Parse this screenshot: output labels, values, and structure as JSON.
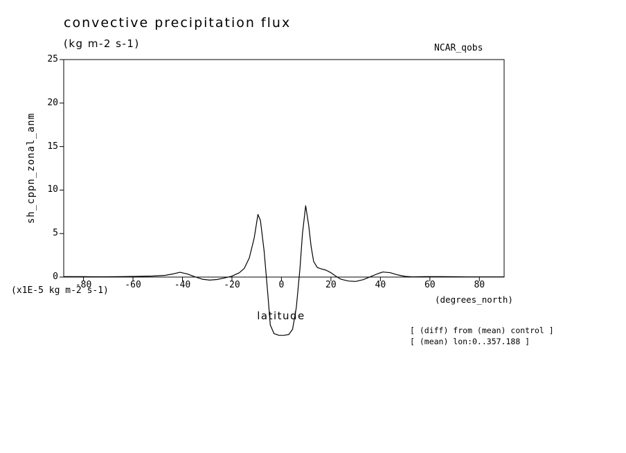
{
  "header": {
    "title": "convective precipitation flux",
    "units": "(kg m-2 s-1)",
    "dataset": "NCAR_qobs"
  },
  "footer": {
    "scale_note": "(x1E-5 kg m-2 s-1)",
    "x_units": "(degrees_north)",
    "annotations": [
      "[ (diff) from (mean) control ]",
      "[ (mean) lon:0..357.188 ]"
    ]
  },
  "chart_data": {
    "type": "line",
    "title": "convective precipitation flux",
    "subtitle": "(kg m-2 s-1)",
    "dataset_label": "NCAR_qobs",
    "xlabel": "latitude",
    "ylabel": "sh_cppn_zonal_anm",
    "x_units": "(degrees_north)",
    "y_scale_note": "(x1E-5 kg m-2 s-1)",
    "xlim": [
      -88,
      90
    ],
    "ylim": [
      0,
      25
    ],
    "grid": false,
    "legend": "none",
    "x_ticks": [
      -80,
      -60,
      -40,
      -20,
      0,
      20,
      40,
      60,
      80
    ],
    "x_tick_labels": [
      "-80",
      "-60",
      "-40",
      "-20",
      "0",
      "20",
      "40",
      "60",
      "80"
    ],
    "y_ticks": [
      0,
      5,
      10,
      15,
      20,
      25
    ],
    "y_tick_labels": [
      "0",
      "5",
      "10",
      "15",
      "20",
      "25"
    ],
    "line_color": "#000000",
    "note": "curve is unclipped and dips below the axis frame near the equator",
    "series": [
      {
        "name": "sh_cppn_zonal_anm",
        "points": [
          [
            -88,
            0.05
          ],
          [
            -80,
            0.05
          ],
          [
            -72,
            0.03
          ],
          [
            -65,
            0.05
          ],
          [
            -58,
            0.08
          ],
          [
            -52,
            0.12
          ],
          [
            -47,
            0.2
          ],
          [
            -44,
            0.35
          ],
          [
            -41,
            0.55
          ],
          [
            -38,
            0.35
          ],
          [
            -35,
            0.03
          ],
          [
            -32,
            -0.25
          ],
          [
            -29,
            -0.35
          ],
          [
            -26,
            -0.28
          ],
          [
            -23,
            -0.1
          ],
          [
            -20,
            0.1
          ],
          [
            -17,
            0.5
          ],
          [
            -15,
            1.0
          ],
          [
            -13,
            2.2
          ],
          [
            -11,
            4.5
          ],
          [
            -10,
            6.3
          ],
          [
            -9.5,
            7.2
          ],
          [
            -8.5,
            6.5
          ],
          [
            -7,
            3.0
          ],
          [
            -5.5,
            -2.0
          ],
          [
            -4.5,
            -5.5
          ],
          [
            -3,
            -6.5
          ],
          [
            -1,
            -6.7
          ],
          [
            1,
            -6.7
          ],
          [
            3,
            -6.6
          ],
          [
            4.5,
            -6.0
          ],
          [
            6,
            -3.5
          ],
          [
            7.5,
            1.0
          ],
          [
            8.5,
            5.0
          ],
          [
            9.8,
            8.2
          ],
          [
            11,
            6.0
          ],
          [
            12,
            3.5
          ],
          [
            13,
            1.8
          ],
          [
            14.5,
            1.1
          ],
          [
            16,
            0.95
          ],
          [
            18,
            0.8
          ],
          [
            20,
            0.5
          ],
          [
            22,
            0.1
          ],
          [
            24,
            -0.25
          ],
          [
            27,
            -0.45
          ],
          [
            30,
            -0.5
          ],
          [
            33,
            -0.3
          ],
          [
            36,
            0.05
          ],
          [
            39,
            0.4
          ],
          [
            41,
            0.58
          ],
          [
            44,
            0.5
          ],
          [
            47,
            0.25
          ],
          [
            50,
            0.08
          ],
          [
            53,
            0.02
          ],
          [
            58,
            0.05
          ],
          [
            65,
            0.05
          ],
          [
            75,
            0.02
          ],
          [
            85,
            0.02
          ],
          [
            90,
            0.02
          ]
        ]
      }
    ]
  }
}
